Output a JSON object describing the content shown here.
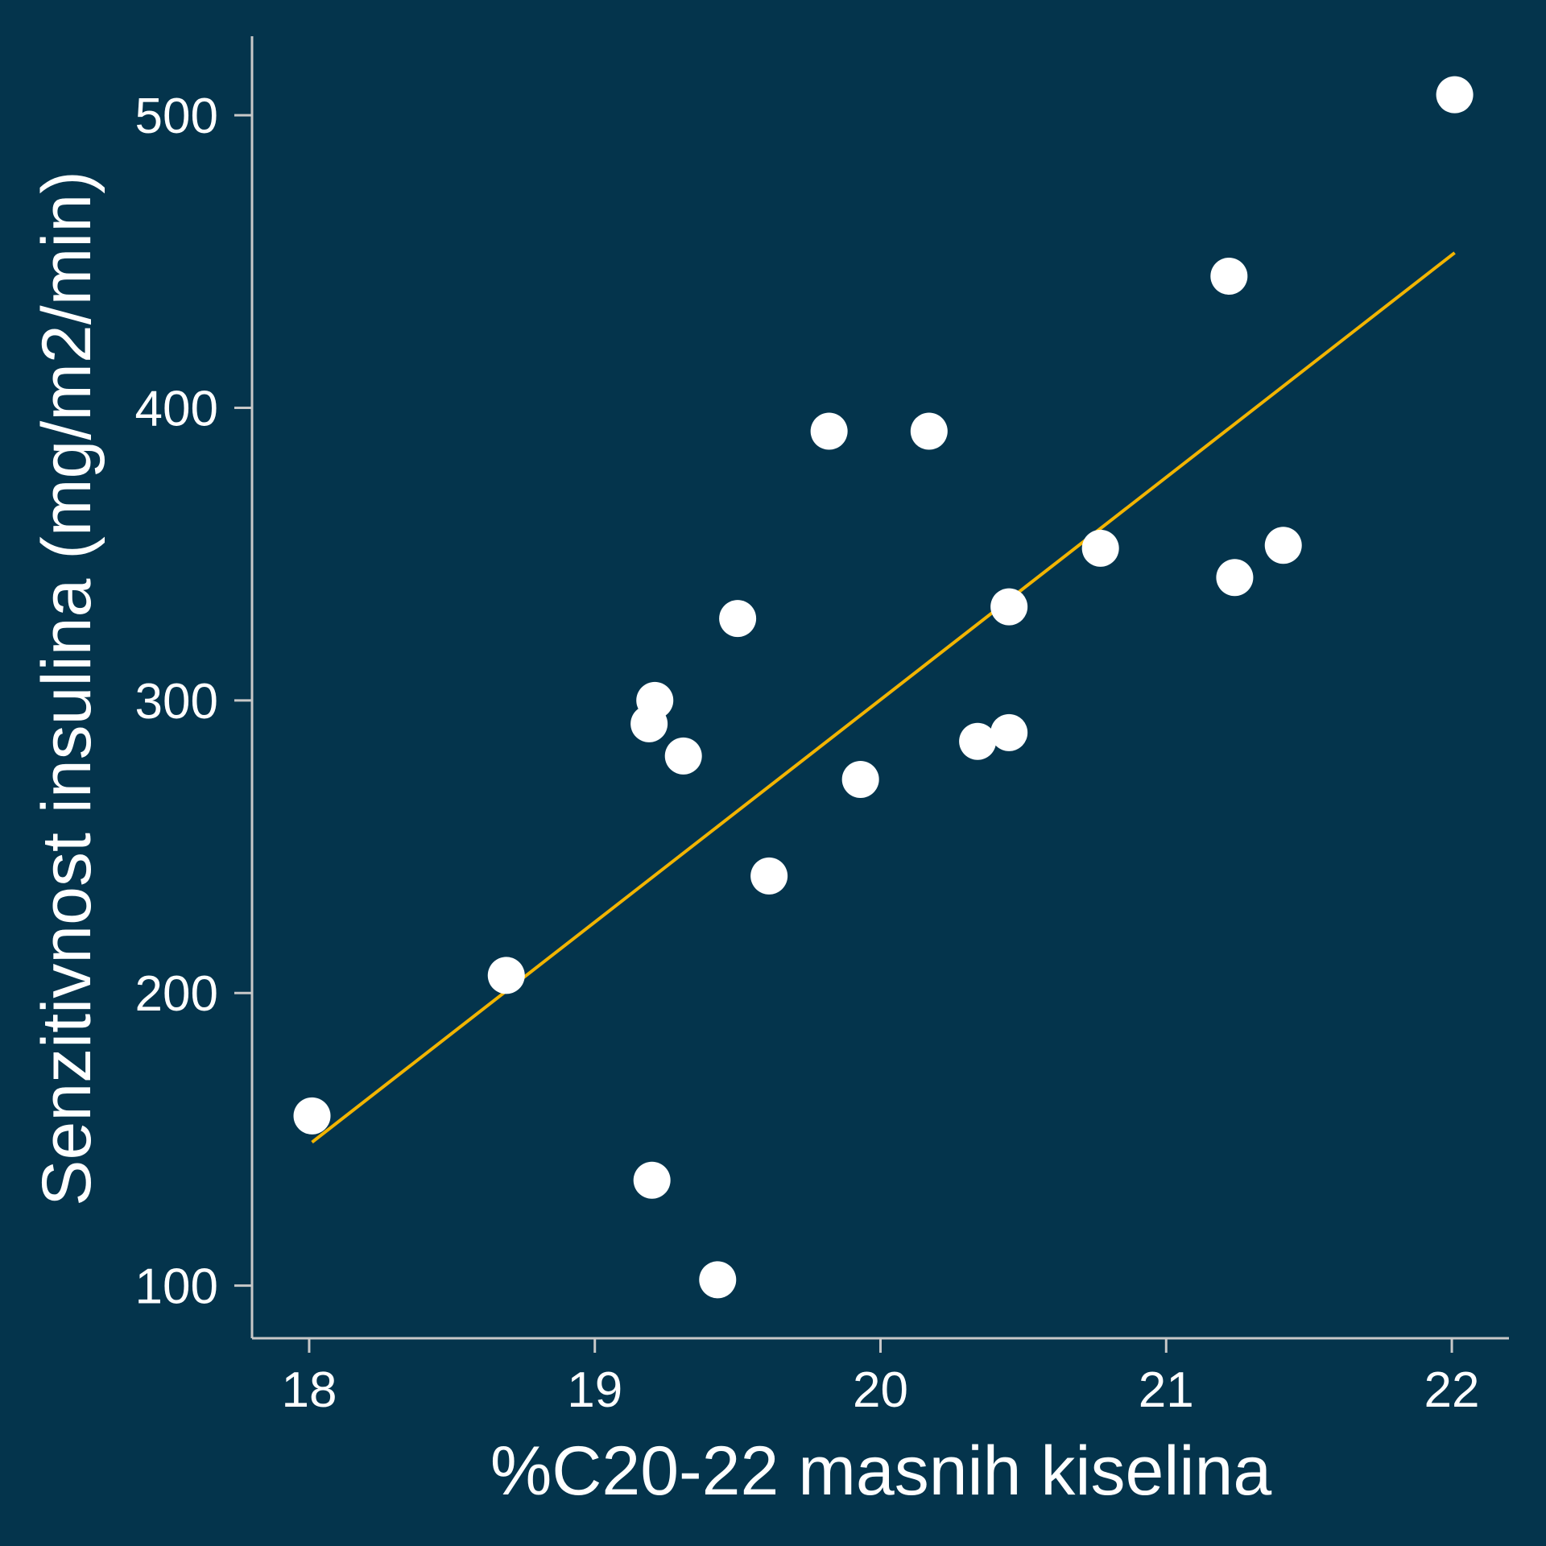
{
  "chart_data": {
    "type": "scatter",
    "title": "",
    "xlabel": "%C20-22 masnih kiselina",
    "ylabel": "Senzitivnost insulina (mg/m2/min)",
    "xlim": [
      17.8,
      22.2
    ],
    "ylim": [
      82,
      527
    ],
    "x_ticks": [
      18,
      19,
      20,
      21,
      22
    ],
    "y_ticks": [
      100,
      200,
      300,
      400,
      500
    ],
    "grid": false,
    "points": [
      {
        "x": 18.01,
        "y": 158
      },
      {
        "x": 18.69,
        "y": 206
      },
      {
        "x": 19.19,
        "y": 292
      },
      {
        "x": 19.21,
        "y": 300
      },
      {
        "x": 19.2,
        "y": 136
      },
      {
        "x": 19.31,
        "y": 281
      },
      {
        "x": 19.43,
        "y": 102
      },
      {
        "x": 19.5,
        "y": 328
      },
      {
        "x": 19.61,
        "y": 240
      },
      {
        "x": 19.82,
        "y": 392
      },
      {
        "x": 19.93,
        "y": 273
      },
      {
        "x": 20.17,
        "y": 392
      },
      {
        "x": 20.34,
        "y": 286
      },
      {
        "x": 20.45,
        "y": 289
      },
      {
        "x": 20.45,
        "y": 332
      },
      {
        "x": 20.77,
        "y": 352
      },
      {
        "x": 21.22,
        "y": 445
      },
      {
        "x": 21.24,
        "y": 342
      },
      {
        "x": 21.41,
        "y": 353
      },
      {
        "x": 22.01,
        "y": 507
      }
    ],
    "fit_line": {
      "x": [
        18.01,
        22.01
      ],
      "y": [
        149,
        453
      ]
    },
    "colors": {
      "background": "#04344c",
      "points": "#ffffff",
      "fit_line": "#f2b400",
      "axis": "#c8c8c8"
    }
  }
}
